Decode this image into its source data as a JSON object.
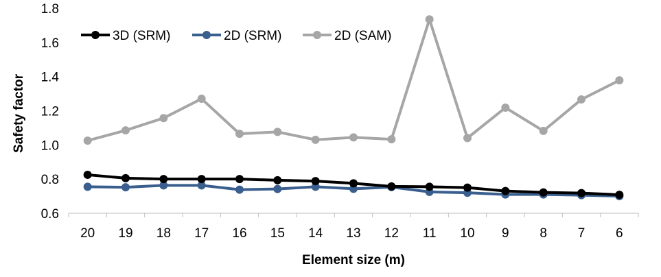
{
  "chart_data": {
    "type": "line",
    "title": "",
    "xlabel": "Element size (m)",
    "ylabel": "Safety factor",
    "categories": [
      "20",
      "19",
      "18",
      "17",
      "16",
      "15",
      "14",
      "13",
      "12",
      "11",
      "10",
      "9",
      "8",
      "7",
      "6"
    ],
    "ylim": [
      0.6,
      1.8
    ],
    "yticks": [
      "0.6",
      "0.8",
      "1.0",
      "1.2",
      "1.4",
      "1.6",
      "1.8"
    ],
    "grid": false,
    "legend_position": "top-left",
    "series": [
      {
        "name": "3D (SRM)",
        "color": "#000000",
        "values": [
          0.825,
          0.805,
          0.8,
          0.8,
          0.8,
          0.793,
          0.788,
          0.775,
          0.757,
          0.755,
          0.75,
          0.73,
          0.722,
          0.718,
          0.708
        ]
      },
      {
        "name": "2D (SRM)",
        "color": "#3A5F8E",
        "values": [
          0.755,
          0.752,
          0.763,
          0.763,
          0.738,
          0.742,
          0.755,
          0.743,
          0.753,
          0.725,
          0.72,
          0.71,
          0.71,
          0.706,
          0.7
        ]
      },
      {
        "name": "2D (SAM)",
        "color": "#A6A6A6",
        "values": [
          1.025,
          1.085,
          1.157,
          1.27,
          1.065,
          1.076,
          1.03,
          1.044,
          1.033,
          1.735,
          1.04,
          1.218,
          1.082,
          1.266,
          1.378
        ]
      }
    ]
  }
}
